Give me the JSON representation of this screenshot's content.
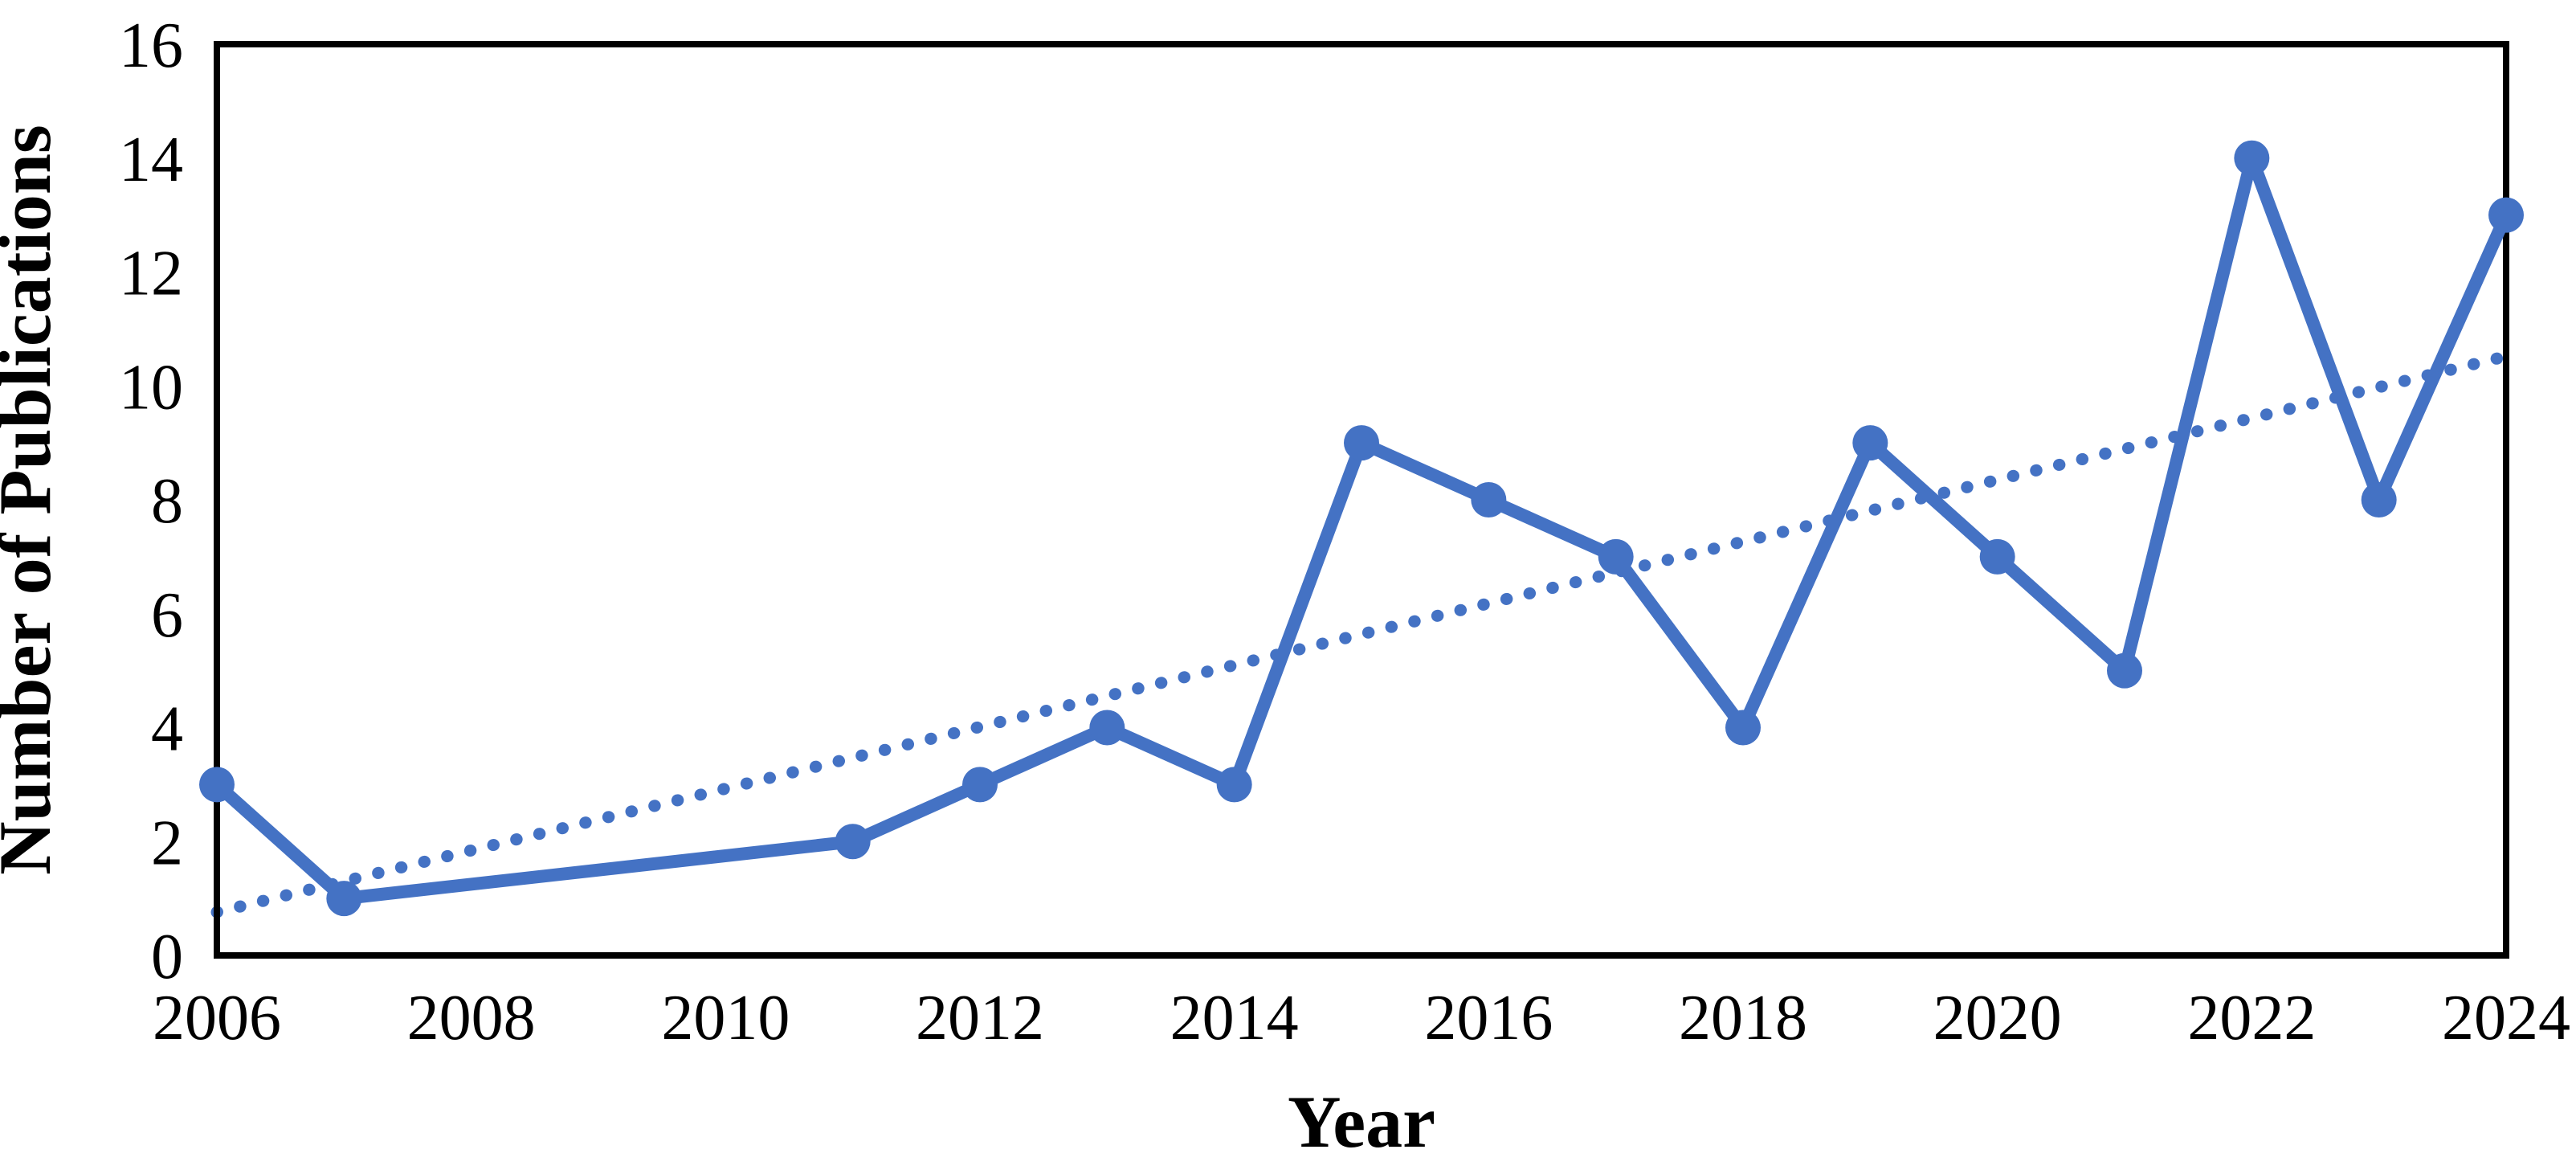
{
  "figure": {
    "background": "#FFFFFF",
    "title": ""
  },
  "chart_data": {
    "type": "line",
    "title": "",
    "xlabel": "Year",
    "ylabel": "Number of Publications",
    "xlim": [
      2006,
      2024
    ],
    "ylim": [
      0,
      16
    ],
    "x_ticks": [
      2006,
      2008,
      2010,
      2012,
      2014,
      2016,
      2018,
      2020,
      2022,
      2024
    ],
    "y_ticks": [
      0,
      2,
      4,
      6,
      8,
      10,
      12,
      14,
      16
    ],
    "grid": false,
    "legend": false,
    "axis_color": "#000000",
    "text_color": "#000000",
    "series": [
      {
        "name": "Number of Publications",
        "color": "#4472C4",
        "marker": "circle",
        "line_style": "solid",
        "x": [
          2006,
          2007,
          2011,
          2012,
          2013,
          2014,
          2015,
          2016,
          2017,
          2018,
          2019,
          2020,
          2021,
          2022,
          2023,
          2024
        ],
        "values": [
          3,
          1,
          2,
          3,
          4,
          3,
          9,
          8,
          7,
          4,
          9,
          7,
          5,
          14,
          8,
          13
        ]
      }
    ],
    "trendline": {
      "style": "dotted",
      "color": "#4472C4",
      "x_start": 2006,
      "value_start": 0.76,
      "x_end": 2024,
      "value_end": 10.52
    }
  }
}
